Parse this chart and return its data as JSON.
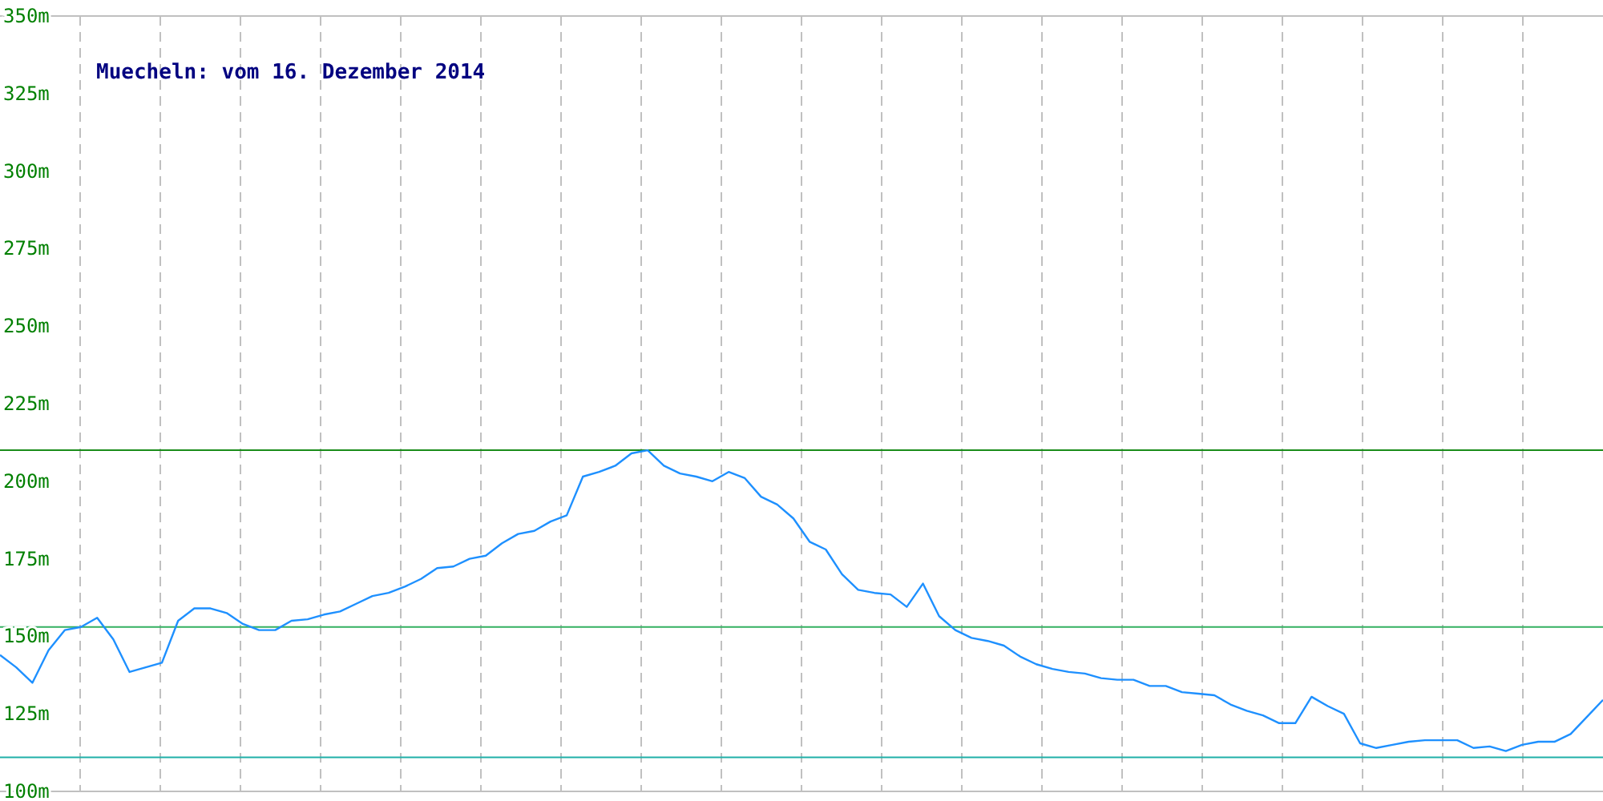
{
  "chart_data": {
    "type": "line",
    "title": "Muecheln: vom 16. Dezember 2014",
    "categories": [
      null,
      null,
      null,
      null,
      null,
      null,
      null,
      null,
      null,
      null,
      null,
      null,
      null,
      null,
      null,
      null,
      null,
      null,
      null,
      null,
      null,
      null,
      null,
      null,
      null,
      null,
      null,
      null,
      null,
      null,
      null,
      null,
      null,
      null,
      null,
      null,
      null,
      null,
      null,
      null,
      null,
      null,
      null,
      null,
      null,
      null,
      null,
      null,
      null,
      null,
      null,
      null,
      null,
      null,
      null,
      null,
      null,
      null,
      null,
      null,
      null,
      null,
      null,
      null,
      null,
      null,
      null,
      null,
      null,
      null,
      null,
      null,
      null,
      null,
      null,
      null,
      null,
      null,
      null,
      null,
      null,
      null,
      null,
      null,
      null,
      null,
      null,
      null,
      null,
      null,
      null,
      null,
      null,
      null,
      null,
      null,
      null,
      null,
      null,
      null
    ],
    "ylim": [
      100,
      350
    ],
    "yticks": [
      {
        "value": 100,
        "label": "100m"
      },
      {
        "value": 125,
        "label": "125m"
      },
      {
        "value": 150,
        "label": "150m"
      },
      {
        "value": 175,
        "label": "175m"
      },
      {
        "value": 200,
        "label": "200m"
      },
      {
        "value": 225,
        "label": "225m"
      },
      {
        "value": 250,
        "label": "250m"
      },
      {
        "value": 275,
        "label": "275m"
      },
      {
        "value": 300,
        "label": "300m"
      },
      {
        "value": 325,
        "label": "325m"
      },
      {
        "value": 350,
        "label": "350m"
      }
    ],
    "tick_labels": "y",
    "grid": true,
    "marker": "none",
    "line_style": "solid",
    "ref_lines": [
      {
        "axis": "y",
        "value": 210,
        "color": "#1a8c1a"
      },
      {
        "axis": "y",
        "value": 153,
        "color": "#33b060"
      },
      {
        "axis": "y",
        "value": 111,
        "color": "#20b0a8"
      }
    ],
    "series": [
      {
        "color": "#1e90ff",
        "values": [
          144,
          140,
          135,
          145.5,
          152,
          153,
          156,
          149,
          138.5,
          140,
          141.5,
          155,
          159,
          159,
          157.5,
          154,
          152,
          152,
          155,
          155.5,
          157,
          158,
          160.5,
          163,
          164,
          166,
          168.5,
          172,
          172.5,
          175,
          176,
          180,
          183,
          184,
          187,
          189,
          201.5,
          203,
          205,
          209,
          210,
          205,
          202.5,
          201.5,
          200,
          203,
          201,
          195,
          192.5,
          188,
          180.5,
          178,
          170,
          165,
          164,
          163.5,
          159.5,
          167,
          156.5,
          152,
          149.5,
          148.5,
          147,
          143.5,
          141,
          139.5,
          138.5,
          138,
          136.5,
          136,
          136,
          134,
          134,
          132,
          131.5,
          131,
          128,
          126,
          124.5,
          122,
          122,
          130.5,
          127.5,
          125,
          115.5,
          114,
          115,
          116,
          116.5,
          116.5,
          116.5,
          114,
          114.5,
          113,
          115,
          116,
          116,
          118.5,
          124,
          129.5
        ]
      }
    ]
  }
}
